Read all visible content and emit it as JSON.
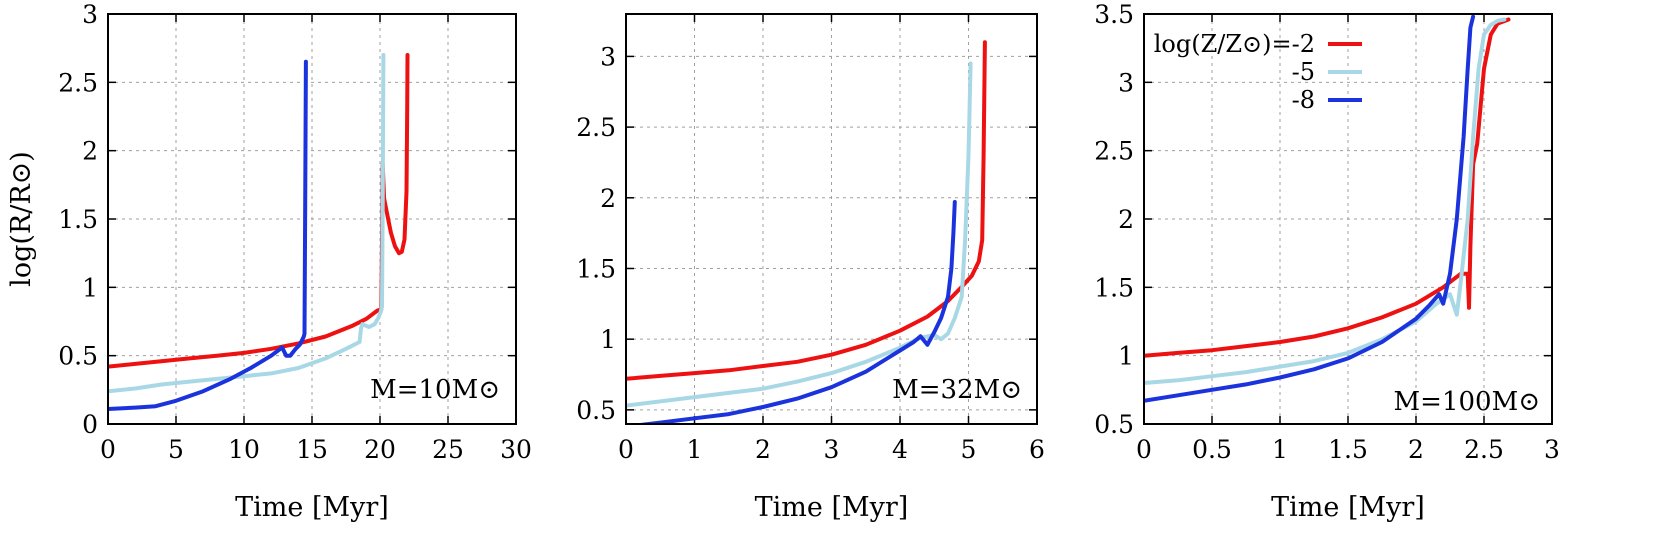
{
  "colors": {
    "red": "#ee1111",
    "lightblue": "#a8d8e6",
    "blue": "#1a33dd"
  },
  "legend": {
    "entries": [
      {
        "label": "log(Z/Z⊙)=-2",
        "color": "#ee1111"
      },
      {
        "label": "-5",
        "color": "#a8d8e6"
      },
      {
        "label": "-8",
        "color": "#1a33dd"
      }
    ],
    "placement": "top-left of third panel"
  },
  "chart_data": [
    {
      "type": "line",
      "xlabel": "Time [Myr]",
      "ylabel": "log(R/R⊙)",
      "annotation": "M=10M⊙",
      "xlim": [
        0,
        30
      ],
      "ylim": [
        0,
        3
      ],
      "xticks": [
        "0",
        "5",
        "10",
        "15",
        "20",
        "25",
        "30"
      ],
      "yticks": [
        "0",
        "0.5",
        "1",
        "1.5",
        "2",
        "2.5",
        "3"
      ],
      "grid": true,
      "series": [
        {
          "name": "log(Z/Z⊙)=-2",
          "color": "#ee1111",
          "x": [
            0,
            2,
            4,
            6,
            8,
            10,
            12,
            14,
            16,
            18,
            19,
            19.8,
            20.1,
            20.2,
            20.3,
            20.5,
            20.8,
            21.1,
            21.4,
            21.6,
            21.8,
            21.95,
            22,
            22.02
          ],
          "y": [
            0.42,
            0.44,
            0.46,
            0.48,
            0.5,
            0.52,
            0.55,
            0.59,
            0.64,
            0.72,
            0.77,
            0.83,
            0.84,
            1.9,
            1.65,
            1.55,
            1.4,
            1.3,
            1.25,
            1.26,
            1.35,
            1.7,
            2.3,
            2.7
          ]
        },
        {
          "name": "log(Z/Z⊙)=-5",
          "color": "#a8d8e6",
          "x": [
            0,
            2,
            4,
            6,
            8,
            10,
            12,
            14,
            16,
            17.5,
            18.5,
            18.6,
            18.7,
            19.2,
            19.6,
            19.9,
            20.05,
            20.15,
            20.2,
            20.25
          ],
          "y": [
            0.24,
            0.26,
            0.29,
            0.31,
            0.33,
            0.35,
            0.37,
            0.41,
            0.48,
            0.55,
            0.6,
            0.7,
            0.73,
            0.71,
            0.73,
            0.78,
            0.82,
            0.86,
            1.6,
            2.7
          ]
        },
        {
          "name": "log(Z/Z⊙)=-8",
          "color": "#1a33dd",
          "x": [
            0,
            2,
            3.5,
            5,
            7,
            9,
            10.5,
            12,
            12.8,
            13.1,
            13.4,
            13.8,
            14.1,
            14.3,
            14.4,
            14.45,
            14.5,
            14.55
          ],
          "y": [
            0.11,
            0.12,
            0.13,
            0.17,
            0.24,
            0.33,
            0.41,
            0.5,
            0.56,
            0.5,
            0.5,
            0.55,
            0.58,
            0.62,
            0.64,
            0.66,
            1.6,
            2.65
          ]
        }
      ]
    },
    {
      "type": "line",
      "xlabel": "Time [Myr]",
      "ylabel": "",
      "annotation": "M=32M⊙",
      "xlim": [
        0,
        6
      ],
      "ylim": [
        0.4,
        3.3
      ],
      "xticks": [
        "0",
        "1",
        "2",
        "3",
        "4",
        "5",
        "6"
      ],
      "yticks": [
        "0.5",
        "1",
        "1.5",
        "2",
        "2.5",
        "3"
      ],
      "grid": true,
      "series": [
        {
          "name": "log(Z/Z⊙)=-2",
          "color": "#ee1111",
          "x": [
            0,
            0.5,
            1,
            1.5,
            2,
            2.5,
            3,
            3.5,
            4,
            4.4,
            4.7,
            4.9,
            5.05,
            5.15,
            5.2,
            5.22,
            5.24
          ],
          "y": [
            0.72,
            0.74,
            0.76,
            0.78,
            0.81,
            0.84,
            0.89,
            0.96,
            1.06,
            1.16,
            1.27,
            1.37,
            1.45,
            1.55,
            1.7,
            2.3,
            3.1
          ]
        },
        {
          "name": "log(Z/Z⊙)=-5",
          "color": "#a8d8e6",
          "x": [
            0,
            0.5,
            1,
            1.5,
            2,
            2.5,
            3,
            3.5,
            4,
            4.3,
            4.5,
            4.6,
            4.7,
            4.8,
            4.9,
            4.95,
            5,
            5.03
          ],
          "y": [
            0.53,
            0.56,
            0.59,
            0.62,
            0.65,
            0.7,
            0.76,
            0.84,
            0.94,
            1.01,
            1.03,
            1.0,
            1.04,
            1.15,
            1.3,
            1.7,
            2.3,
            2.95
          ]
        },
        {
          "name": "log(Z/Z⊙)=-8",
          "color": "#1a33dd",
          "x": [
            0,
            0.5,
            1,
            1.5,
            2,
            2.5,
            3,
            3.5,
            4,
            4.2,
            4.3,
            4.4,
            4.5,
            4.6,
            4.7,
            4.75,
            4.78,
            4.8
          ],
          "y": [
            0.38,
            0.41,
            0.44,
            0.47,
            0.52,
            0.58,
            0.66,
            0.77,
            0.92,
            0.98,
            1.02,
            0.96,
            1.05,
            1.15,
            1.3,
            1.5,
            1.75,
            1.97
          ]
        }
      ]
    },
    {
      "type": "line",
      "xlabel": "Time [Myr]",
      "ylabel": "",
      "annotation": "M=100M⊙",
      "xlim": [
        0,
        3
      ],
      "ylim": [
        0.5,
        3.5
      ],
      "xticks": [
        "0",
        "0.5",
        "1",
        "1.5",
        "2",
        "2.5",
        "3"
      ],
      "yticks": [
        "0.5",
        "1",
        "1.5",
        "2",
        "2.5",
        "3",
        "3.5"
      ],
      "grid": true,
      "series": [
        {
          "name": "log(Z/Z⊙)=-2",
          "color": "#ee1111",
          "x": [
            0,
            0.25,
            0.5,
            0.75,
            1,
            1.25,
            1.5,
            1.75,
            2,
            2.2,
            2.33,
            2.38,
            2.39,
            2.4,
            2.42,
            2.45,
            2.5,
            2.55,
            2.6,
            2.68
          ],
          "y": [
            1.0,
            1.02,
            1.04,
            1.07,
            1.1,
            1.14,
            1.2,
            1.28,
            1.38,
            1.5,
            1.6,
            1.6,
            1.35,
            1.8,
            2.4,
            2.55,
            3.1,
            3.35,
            3.43,
            3.46
          ]
        },
        {
          "name": "log(Z/Z⊙)=-5",
          "color": "#a8d8e6",
          "x": [
            0,
            0.25,
            0.5,
            0.75,
            1,
            1.25,
            1.5,
            1.75,
            2,
            2.15,
            2.25,
            2.3,
            2.33,
            2.38,
            2.42,
            2.46,
            2.5,
            2.55,
            2.6,
            2.65
          ],
          "y": [
            0.8,
            0.82,
            0.85,
            0.88,
            0.92,
            0.96,
            1.02,
            1.12,
            1.25,
            1.38,
            1.45,
            1.3,
            1.55,
            2.0,
            2.6,
            3.1,
            3.35,
            3.42,
            3.45,
            3.46
          ]
        },
        {
          "name": "log(Z/Z⊙)=-8",
          "color": "#1a33dd",
          "x": [
            0,
            0.25,
            0.5,
            0.75,
            1,
            1.25,
            1.5,
            1.75,
            2,
            2.1,
            2.17,
            2.2,
            2.25,
            2.3,
            2.35,
            2.38,
            2.4,
            2.42
          ],
          "y": [
            0.67,
            0.71,
            0.75,
            0.79,
            0.84,
            0.9,
            0.98,
            1.1,
            1.27,
            1.37,
            1.45,
            1.38,
            1.6,
            2.0,
            2.6,
            3.1,
            3.4,
            3.48
          ]
        }
      ]
    }
  ]
}
